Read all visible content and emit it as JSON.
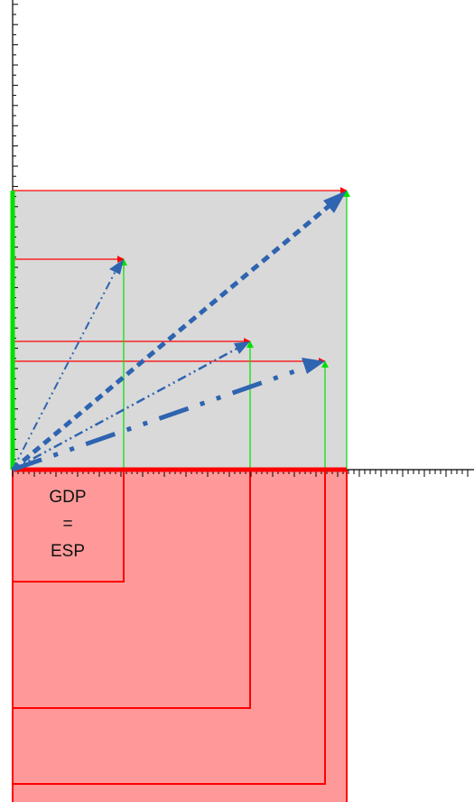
{
  "label": {
    "line1": "GDP",
    "line2": "=",
    "line3": "ESP"
  },
  "colors": {
    "gray_area": "#d9d9d9",
    "red_area": "#ff9999",
    "red": "#ff0000",
    "green": "#00e000",
    "blue": "#2e64b0",
    "axis": "#000000"
  },
  "vectors": [
    {
      "id": "vector-4",
      "style": "dashed-bold"
    },
    {
      "id": "vector-1",
      "style": "dash-dot-dot-thin"
    },
    {
      "id": "vector-2",
      "style": "dash-dot-dot-medium"
    },
    {
      "id": "vector-3",
      "style": "long-dash-dot-bold"
    }
  ]
}
